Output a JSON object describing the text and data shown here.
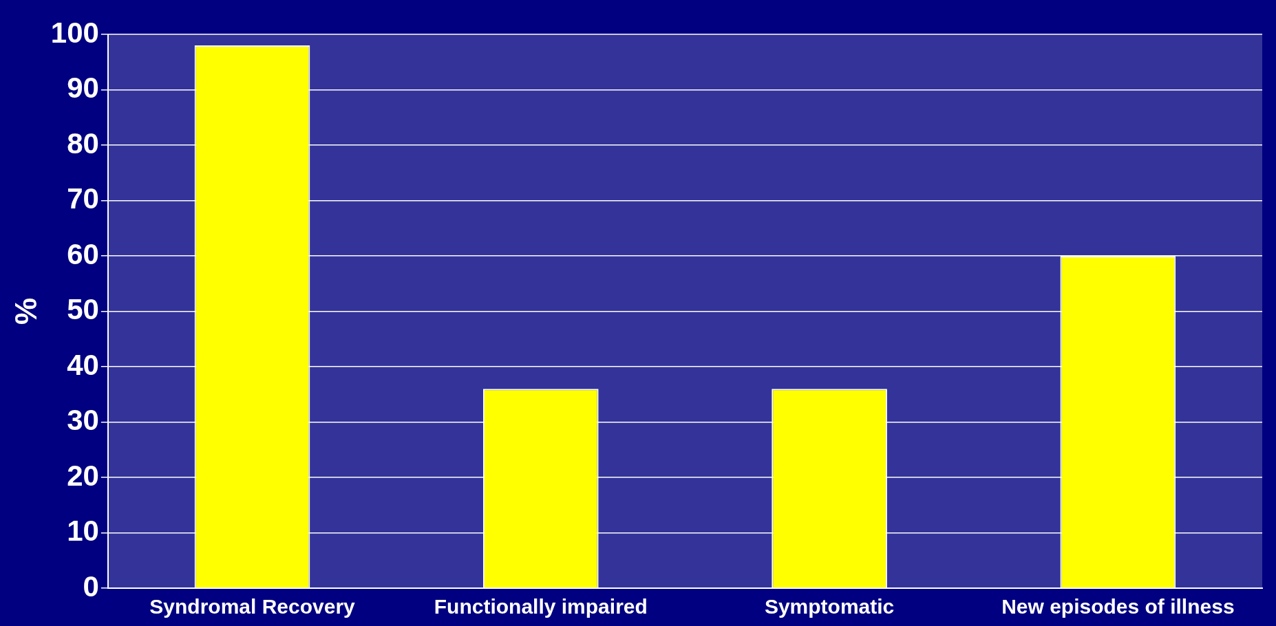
{
  "chart_data": {
    "type": "bar",
    "ylabel": "%",
    "categories": [
      "Syndromal Recovery",
      "Functionally impaired",
      "Symptomatic",
      "New episodes of illness"
    ],
    "values": [
      98,
      36,
      36,
      60
    ],
    "color": "#ffff00",
    "ylim": [
      0,
      100
    ],
    "yticks": [
      0,
      10,
      20,
      30,
      40,
      50,
      60,
      70,
      80,
      90,
      100
    ],
    "grid": "y",
    "legend": false
  }
}
